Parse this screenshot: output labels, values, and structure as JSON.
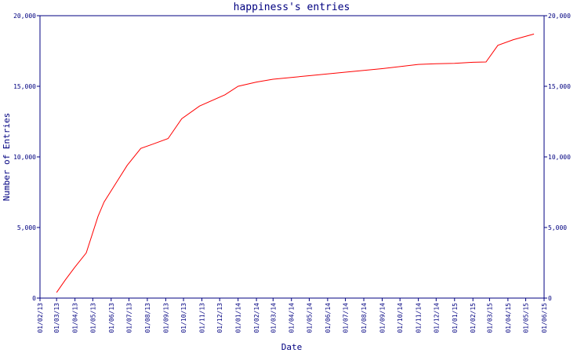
{
  "chart_data": {
    "type": "line",
    "title": "happiness's entries",
    "xlabel": "Date",
    "ylabel": "Number of Entries",
    "x_ticks": [
      "01/02/13",
      "01/03/13",
      "01/04/13",
      "01/05/13",
      "01/06/13",
      "01/07/13",
      "01/08/13",
      "01/09/13",
      "01/10/13",
      "01/11/13",
      "01/12/13",
      "01/01/14",
      "01/02/14",
      "01/03/14",
      "01/04/14",
      "01/05/14",
      "01/06/14",
      "01/07/14",
      "01/08/14",
      "01/09/14",
      "01/10/14",
      "01/11/14",
      "01/12/14",
      "01/01/15",
      "01/02/15",
      "01/03/15",
      "01/04/15",
      "01/05/15",
      "01/06/15"
    ],
    "y_ticks": [
      "0",
      "5,000",
      "10,000",
      "15,000",
      "20,000"
    ],
    "ylim": [
      0,
      20000
    ],
    "xlim": [
      "2013-02-01",
      "2015-06-01"
    ],
    "grid": false,
    "series": [
      {
        "color": "#ff0000",
        "points": [
          {
            "x": "2013-03-01",
            "y": 400
          },
          {
            "x": "2013-03-16",
            "y": 1300
          },
          {
            "x": "2013-04-01",
            "y": 2200
          },
          {
            "x": "2013-04-20",
            "y": 3200
          },
          {
            "x": "2013-05-10",
            "y": 5800
          },
          {
            "x": "2013-05-20",
            "y": 6800
          },
          {
            "x": "2013-06-10",
            "y": 8200
          },
          {
            "x": "2013-06-28",
            "y": 9400
          },
          {
            "x": "2013-07-21",
            "y": 10600
          },
          {
            "x": "2013-08-10",
            "y": 10900
          },
          {
            "x": "2013-09-05",
            "y": 11300
          },
          {
            "x": "2013-09-28",
            "y": 12700
          },
          {
            "x": "2013-10-28",
            "y": 13600
          },
          {
            "x": "2013-12-10",
            "y": 14400
          },
          {
            "x": "2014-01-01",
            "y": 15000
          },
          {
            "x": "2014-02-01",
            "y": 15300
          },
          {
            "x": "2014-03-01",
            "y": 15500
          },
          {
            "x": "2014-05-01",
            "y": 15750
          },
          {
            "x": "2014-07-01",
            "y": 16000
          },
          {
            "x": "2014-09-01",
            "y": 16250
          },
          {
            "x": "2014-11-01",
            "y": 16550
          },
          {
            "x": "2014-12-01",
            "y": 16600
          },
          {
            "x": "2015-01-01",
            "y": 16620
          },
          {
            "x": "2015-02-01",
            "y": 16700
          },
          {
            "x": "2015-02-23",
            "y": 16720
          },
          {
            "x": "2015-03-15",
            "y": 17900
          },
          {
            "x": "2015-04-10",
            "y": 18300
          },
          {
            "x": "2015-05-15",
            "y": 18700
          }
        ]
      }
    ]
  }
}
